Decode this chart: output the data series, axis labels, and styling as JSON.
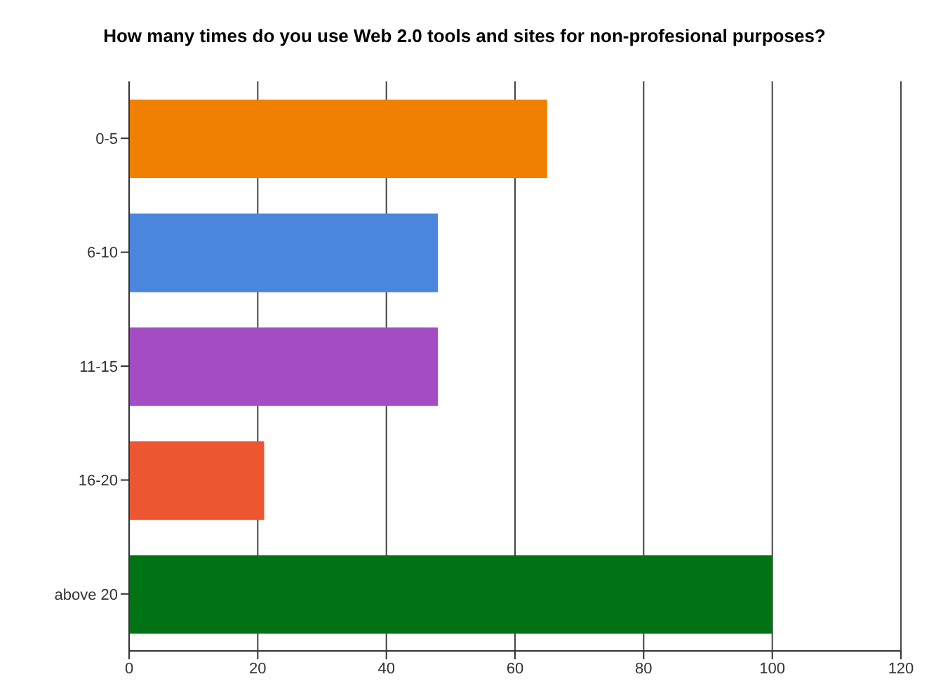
{
  "chart_data": {
    "type": "bar",
    "orientation": "horizontal",
    "title": "How many times do you use Web 2.0 tools and sites for non-profesional purposes?",
    "categories": [
      "0-5",
      "6-10",
      "11-15",
      "16-20",
      "above 20"
    ],
    "values": [
      65,
      48,
      48,
      21,
      100
    ],
    "colors": [
      "#f08000",
      "#4a86dc",
      "#a44cc4",
      "#ec5630",
      "#007414"
    ],
    "xlim": [
      0,
      120
    ],
    "xticks": [
      0,
      20,
      40,
      60,
      80,
      100,
      120
    ],
    "grid": "x"
  }
}
